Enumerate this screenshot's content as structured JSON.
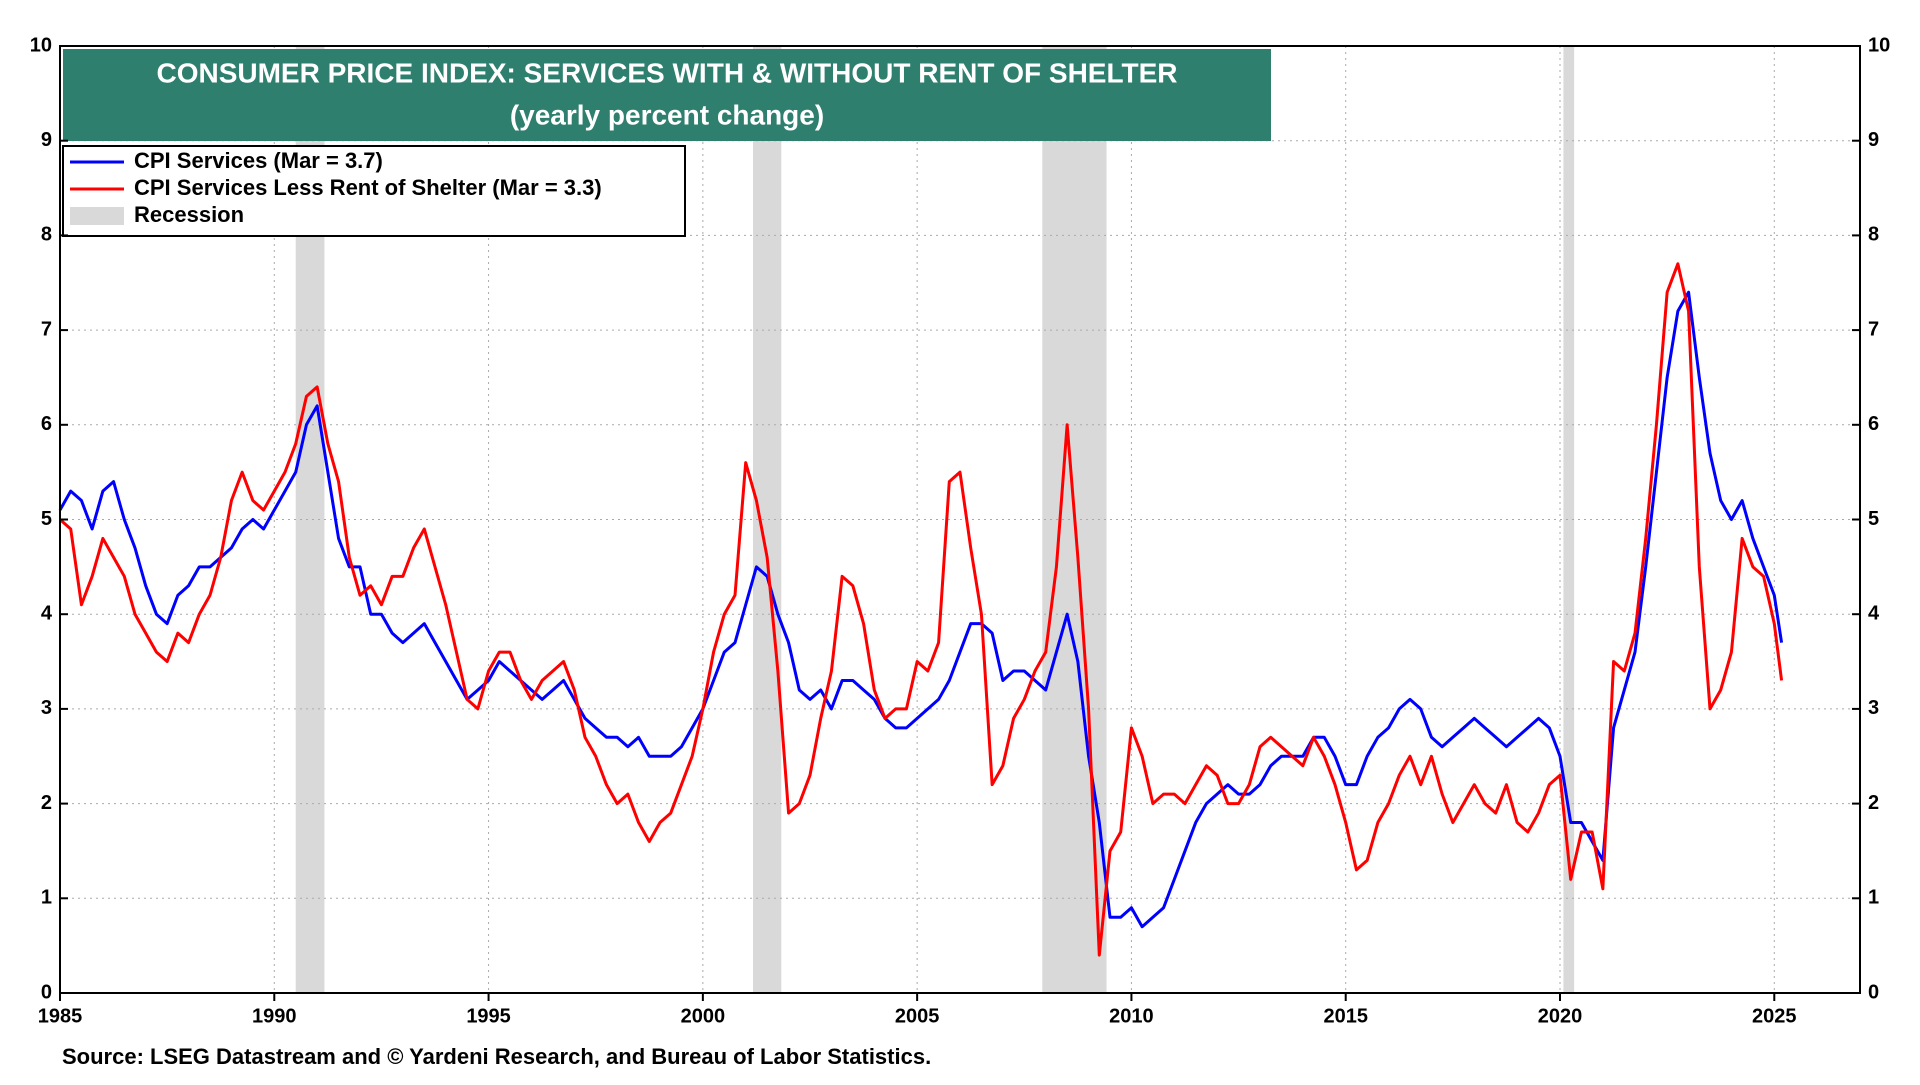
{
  "chart_data": {
    "type": "line",
    "title": "CONSUMER PRICE INDEX: SERVICES WITH & WITHOUT RENT OF SHELTER",
    "subtitle": "(yearly percent change)",
    "source": "Source: LSEG Datastream and © Yardeni Research, and Bureau of Labor Statistics.",
    "legend": "upper left",
    "grid": true,
    "xlim": [
      1985,
      2027
    ],
    "xticks": [
      1985,
      1990,
      1995,
      2000,
      2005,
      2010,
      2015,
      2020,
      2025
    ],
    "ylim": [
      0,
      10
    ],
    "yticks": [
      0,
      1,
      2,
      3,
      4,
      5,
      6,
      7,
      8,
      9,
      10
    ],
    "y2lim": [
      0,
      10
    ],
    "y2ticks": [
      0,
      1,
      2,
      3,
      4,
      5,
      6,
      7,
      8,
      9,
      10
    ],
    "recession_label": "Recession",
    "recession_color": "#d9d9d9",
    "recessions": [
      [
        1990.5,
        1991.17
      ],
      [
        2001.17,
        2001.83
      ],
      [
        2007.92,
        2009.42
      ],
      [
        2020.08,
        2020.33
      ]
    ],
    "x": [
      1985,
      1985.25,
      1985.5,
      1985.75,
      1986,
      1986.25,
      1986.5,
      1986.75,
      1987,
      1987.25,
      1987.5,
      1987.75,
      1988,
      1988.25,
      1988.5,
      1988.75,
      1989,
      1989.25,
      1989.5,
      1989.75,
      1990,
      1990.25,
      1990.5,
      1990.75,
      1991,
      1991.25,
      1991.5,
      1991.75,
      1992,
      1992.25,
      1992.5,
      1992.75,
      1993,
      1993.25,
      1993.5,
      1993.75,
      1994,
      1994.25,
      1994.5,
      1994.75,
      1995,
      1995.25,
      1995.5,
      1995.75,
      1996,
      1996.25,
      1996.5,
      1996.75,
      1997,
      1997.25,
      1997.5,
      1997.75,
      1998,
      1998.25,
      1998.5,
      1998.75,
      1999,
      1999.25,
      1999.5,
      1999.75,
      2000,
      2000.25,
      2000.5,
      2000.75,
      2001,
      2001.25,
      2001.5,
      2001.75,
      2002,
      2002.25,
      2002.5,
      2002.75,
      2003,
      2003.25,
      2003.5,
      2003.75,
      2004,
      2004.25,
      2004.5,
      2004.75,
      2005,
      2005.25,
      2005.5,
      2005.75,
      2006,
      2006.25,
      2006.5,
      2006.75,
      2007,
      2007.25,
      2007.5,
      2007.75,
      2008,
      2008.25,
      2008.5,
      2008.75,
      2009,
      2009.25,
      2009.5,
      2009.75,
      2010,
      2010.25,
      2010.5,
      2010.75,
      2011,
      2011.25,
      2011.5,
      2011.75,
      2012,
      2012.25,
      2012.5,
      2012.75,
      2013,
      2013.25,
      2013.5,
      2013.75,
      2014,
      2014.25,
      2014.5,
      2014.75,
      2015,
      2015.25,
      2015.5,
      2015.75,
      2016,
      2016.25,
      2016.5,
      2016.75,
      2017,
      2017.25,
      2017.5,
      2017.75,
      2018,
      2018.25,
      2018.5,
      2018.75,
      2019,
      2019.25,
      2019.5,
      2019.75,
      2020,
      2020.25,
      2020.5,
      2020.75,
      2021,
      2021.25,
      2021.5,
      2021.75,
      2022,
      2022.25,
      2022.5,
      2022.75,
      2023,
      2023.25,
      2023.5,
      2023.75,
      2024,
      2024.25,
      2024.5,
      2024.75,
      2025,
      2025.17
    ],
    "series": [
      {
        "name": "CPI Services (Mar = 3.7)",
        "color": "#0000ff",
        "values": [
          5.1,
          5.3,
          5.2,
          4.9,
          5.3,
          5.4,
          5.0,
          4.7,
          4.3,
          4.0,
          3.9,
          4.2,
          4.3,
          4.5,
          4.5,
          4.6,
          4.7,
          4.9,
          5.0,
          4.9,
          5.1,
          5.3,
          5.5,
          6.0,
          6.2,
          5.5,
          4.8,
          4.5,
          4.5,
          4.0,
          4.0,
          3.8,
          3.7,
          3.8,
          3.9,
          3.7,
          3.5,
          3.3,
          3.1,
          3.2,
          3.3,
          3.5,
          3.4,
          3.3,
          3.2,
          3.1,
          3.2,
          3.3,
          3.1,
          2.9,
          2.8,
          2.7,
          2.7,
          2.6,
          2.7,
          2.5,
          2.5,
          2.5,
          2.6,
          2.8,
          3.0,
          3.3,
          3.6,
          3.7,
          4.1,
          4.5,
          4.4,
          4.0,
          3.7,
          3.2,
          3.1,
          3.2,
          3.0,
          3.3,
          3.3,
          3.2,
          3.1,
          2.9,
          2.8,
          2.8,
          2.9,
          3.0,
          3.1,
          3.3,
          3.6,
          3.9,
          3.9,
          3.8,
          3.3,
          3.4,
          3.4,
          3.3,
          3.2,
          3.6,
          4.0,
          3.5,
          2.5,
          1.8,
          0.8,
          0.8,
          0.9,
          0.7,
          0.8,
          0.9,
          1.2,
          1.5,
          1.8,
          2.0,
          2.1,
          2.2,
          2.1,
          2.1,
          2.2,
          2.4,
          2.5,
          2.5,
          2.5,
          2.7,
          2.7,
          2.5,
          2.2,
          2.2,
          2.5,
          2.7,
          2.8,
          3.0,
          3.1,
          3.0,
          2.7,
          2.6,
          2.7,
          2.8,
          2.9,
          2.8,
          2.7,
          2.6,
          2.7,
          2.8,
          2.9,
          2.8,
          2.5,
          1.8,
          1.8,
          1.6,
          1.4,
          2.8,
          3.2,
          3.6,
          4.5,
          5.5,
          6.5,
          7.2,
          7.4,
          6.5,
          5.7,
          5.2,
          5.0,
          5.2,
          4.8,
          4.5,
          4.2,
          3.7
        ]
      },
      {
        "name": "CPI Services Less Rent of Shelter (Mar = 3.3)",
        "color": "#ff0000",
        "values": [
          5.0,
          4.9,
          4.1,
          4.4,
          4.8,
          4.6,
          4.4,
          4.0,
          3.8,
          3.6,
          3.5,
          3.8,
          3.7,
          4.0,
          4.2,
          4.6,
          5.2,
          5.5,
          5.2,
          5.1,
          5.3,
          5.5,
          5.8,
          6.3,
          6.4,
          5.8,
          5.4,
          4.6,
          4.2,
          4.3,
          4.1,
          4.4,
          4.4,
          4.7,
          4.9,
          4.5,
          4.1,
          3.6,
          3.1,
          3.0,
          3.4,
          3.6,
          3.6,
          3.3,
          3.1,
          3.3,
          3.4,
          3.5,
          3.2,
          2.7,
          2.5,
          2.2,
          2.0,
          2.1,
          1.8,
          1.6,
          1.8,
          1.9,
          2.2,
          2.5,
          3.0,
          3.6,
          4.0,
          4.2,
          5.6,
          5.2,
          4.6,
          3.4,
          1.9,
          2.0,
          2.3,
          2.9,
          3.4,
          4.4,
          4.3,
          3.9,
          3.2,
          2.9,
          3.0,
          3.0,
          3.5,
          3.4,
          3.7,
          5.4,
          5.5,
          4.7,
          4.0,
          2.2,
          2.4,
          2.9,
          3.1,
          3.4,
          3.6,
          4.5,
          6.0,
          4.6,
          3.0,
          0.4,
          1.5,
          1.7,
          2.8,
          2.5,
          2.0,
          2.1,
          2.1,
          2.0,
          2.2,
          2.4,
          2.3,
          2.0,
          2.0,
          2.2,
          2.6,
          2.7,
          2.6,
          2.5,
          2.4,
          2.7,
          2.5,
          2.2,
          1.8,
          1.3,
          1.4,
          1.8,
          2.0,
          2.3,
          2.5,
          2.2,
          2.5,
          2.1,
          1.8,
          2.0,
          2.2,
          2.0,
          1.9,
          2.2,
          1.8,
          1.7,
          1.9,
          2.2,
          2.3,
          1.2,
          1.7,
          1.7,
          1.1,
          3.5,
          3.4,
          3.8,
          4.8,
          6.0,
          7.4,
          7.7,
          7.2,
          4.5,
          3.0,
          3.2,
          3.6,
          4.8,
          4.5,
          4.4,
          3.9,
          3.3
        ]
      }
    ]
  }
}
